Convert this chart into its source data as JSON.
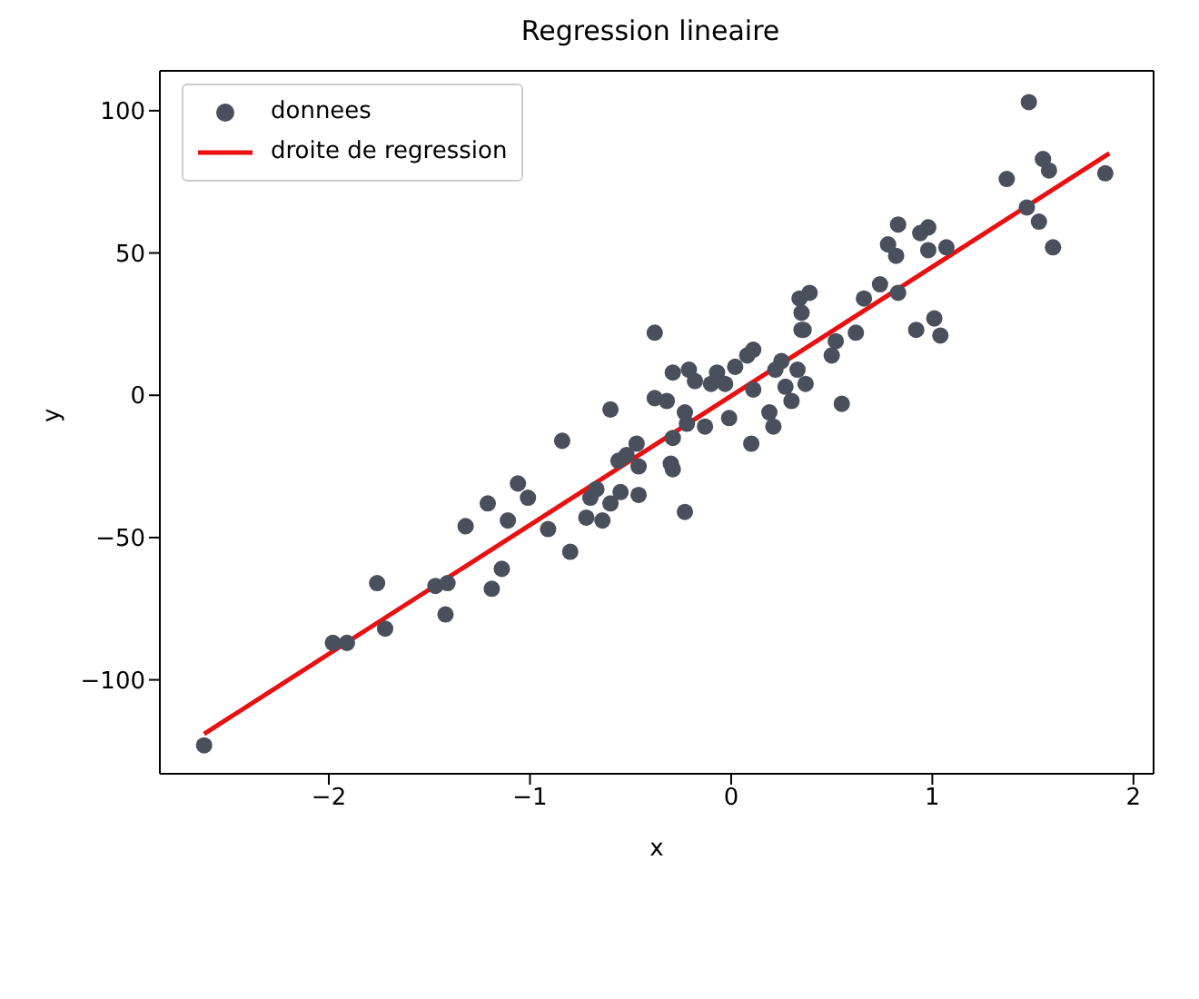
{
  "chart_data": {
    "type": "scatter",
    "title": "Regression lineaire",
    "xlabel": "x",
    "ylabel": "y",
    "xlim": [
      -2.84,
      2.1
    ],
    "ylim": [
      -133,
      114
    ],
    "xticks": [
      -2,
      -1,
      0,
      1,
      2
    ],
    "yticks": [
      -100,
      -50,
      0,
      50,
      100
    ],
    "grid": false,
    "legend": "top left",
    "marker": "circle",
    "series": [
      {
        "name": "donnees",
        "color": "#4a4f5c",
        "x": [
          -2.62,
          -1.98,
          -1.91,
          -1.76,
          -1.72,
          -1.47,
          -1.41,
          -1.42,
          -1.32,
          -1.21,
          -1.19,
          -1.14,
          -1.11,
          -1.06,
          -1.01,
          -0.84,
          -0.91,
          -0.8,
          -0.72,
          -0.64,
          -0.7,
          -0.67,
          -0.6,
          -0.55,
          -0.46,
          -0.46,
          -0.56,
          -0.52,
          -0.47,
          -0.6,
          -0.38,
          -0.38,
          -0.3,
          -0.29,
          -0.23,
          -0.29,
          -0.23,
          -0.22,
          -0.32,
          -0.29,
          -0.21,
          -0.18,
          -0.13,
          -0.1,
          -0.07,
          -0.03,
          0.02,
          -0.01,
          0.1,
          0.11,
          0.08,
          0.11,
          0.19,
          0.21,
          0.22,
          0.25,
          0.27,
          0.3,
          0.33,
          0.37,
          0.55,
          0.5,
          0.52,
          0.62,
          0.34,
          0.39,
          0.35,
          0.35,
          0.36,
          0.66,
          0.74,
          0.83,
          0.92,
          1.01,
          1.04,
          0.83,
          0.78,
          0.82,
          0.94,
          0.98,
          0.98,
          1.07,
          1.37,
          1.48,
          1.55,
          1.58,
          1.86,
          1.47,
          1.53,
          1.6
        ],
        "values": [
          -123,
          -87,
          -87,
          -66,
          -82,
          -67,
          -66,
          -77,
          -46,
          -38,
          -68,
          -61,
          -44,
          -31,
          -36,
          -16,
          -47,
          -55,
          -43,
          -44,
          -36,
          -33,
          -38,
          -34,
          -35,
          -25,
          -23,
          -21,
          -17,
          -5,
          -1,
          22,
          -24,
          -26,
          -41,
          -15,
          -6,
          -10,
          -2,
          8,
          9,
          5,
          -11,
          4,
          8,
          4,
          10,
          -8,
          -17,
          2,
          14,
          16,
          -6,
          -11,
          9,
          12,
          3,
          -2,
          9,
          4,
          -3,
          14,
          19,
          22,
          34,
          36,
          29,
          23,
          23,
          34,
          39,
          36,
          23,
          27,
          21,
          60,
          53,
          49,
          57,
          59,
          51,
          52,
          76,
          103,
          83,
          79,
          78,
          66,
          61,
          52
        ]
      },
      {
        "name": "droite de regression",
        "type": "line",
        "color": "#e81010",
        "line_style": "solid",
        "marker": "none",
        "x": [
          -2.62,
          1.88
        ],
        "values": [
          -119,
          85
        ]
      }
    ]
  }
}
